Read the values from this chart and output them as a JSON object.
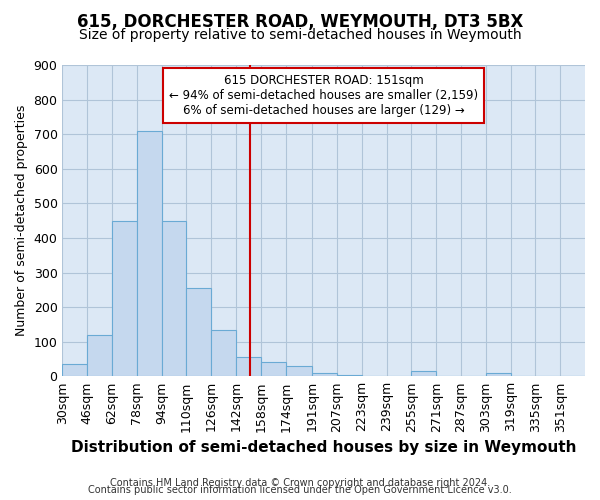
{
  "title_line1": "615, DORCHESTER ROAD, WEYMOUTH, DT3 5BX",
  "title_line2": "Size of property relative to semi-detached houses in Weymouth",
  "xlabel": "Distribution of semi-detached houses by size in Weymouth",
  "ylabel": "Number of semi-detached properties",
  "footer_line1": "Contains HM Land Registry data © Crown copyright and database right 2024.",
  "footer_line2": "Contains public sector information licensed under the Open Government Licence v3.0.",
  "annotation_title": "615 DORCHESTER ROAD: 151sqm",
  "annotation_line1": "← 94% of semi-detached houses are smaller (2,159)",
  "annotation_line2": "6% of semi-detached houses are larger (129) →",
  "bin_edges": [
    30,
    46,
    62,
    78,
    94,
    110,
    126,
    142,
    158,
    174,
    191,
    207,
    223,
    239,
    255,
    271,
    287,
    303,
    319,
    335,
    351,
    367
  ],
  "bin_labels": [
    "30sqm",
    "46sqm",
    "62sqm",
    "78sqm",
    "94sqm",
    "110sqm",
    "126sqm",
    "142sqm",
    "158sqm",
    "174sqm",
    "191sqm",
    "207sqm",
    "223sqm",
    "239sqm",
    "255sqm",
    "271sqm",
    "287sqm",
    "303sqm",
    "319sqm",
    "335sqm",
    "351sqm"
  ],
  "counts": [
    35,
    120,
    450,
    710,
    450,
    255,
    135,
    55,
    40,
    30,
    10,
    5,
    0,
    0,
    15,
    0,
    0,
    10,
    0,
    0,
    0
  ],
  "bar_color": "#c5d8ee",
  "bar_edge_color": "#6aaad4",
  "vline_color": "#cc0000",
  "vline_x": 151,
  "ylim": [
    0,
    900
  ],
  "yticks": [
    0,
    100,
    200,
    300,
    400,
    500,
    600,
    700,
    800,
    900
  ],
  "bg_color": "#ffffff",
  "plot_bg_color": "#dce8f5",
  "annotation_box_color": "#ffffff",
  "annotation_box_edge": "#cc0000",
  "grid_color": "#b0c4d8",
  "title_fontsize": 12,
  "subtitle_fontsize": 10,
  "xlabel_fontsize": 11,
  "ylabel_fontsize": 9,
  "tick_fontsize": 9,
  "footer_fontsize": 7
}
